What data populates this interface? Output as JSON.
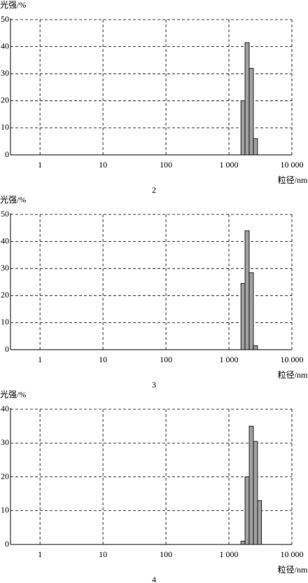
{
  "chart_data": [
    {
      "type": "histogram",
      "ylabel": "光强/%",
      "xlabel": "粒径/nm",
      "caption": "2",
      "log_x": true,
      "grid": true,
      "color": "#a0a0a0",
      "bins": [
        1550,
        1800,
        2100,
        2450,
        2850
      ],
      "values": [
        20,
        41.5,
        32,
        6
      ],
      "xlim": [
        0.34,
        10000
      ],
      "xticks": [
        1,
        10,
        100,
        {
          "value": 1000,
          "label": "1 000"
        },
        {
          "value": 10000,
          "label": "10 000"
        }
      ],
      "ylim": [
        0,
        50
      ],
      "yticks": [
        0,
        10,
        20,
        30,
        40,
        50
      ]
    },
    {
      "type": "histogram",
      "ylabel": "光强/%",
      "xlabel": "粒径/nm",
      "caption": "3",
      "log_x": true,
      "grid": true,
      "color": "#a0a0a0",
      "bins": [
        1550,
        1800,
        2100,
        2450,
        2850
      ],
      "values": [
        24.5,
        44,
        28.5,
        1.5
      ],
      "xlim": [
        0.34,
        10000
      ],
      "xticks": [
        1,
        10,
        100,
        {
          "value": 1000,
          "label": "1 000"
        },
        {
          "value": 10000,
          "label": "10 000"
        }
      ],
      "ylim": [
        0,
        50
      ],
      "yticks": [
        0,
        10,
        20,
        30,
        40,
        50
      ]
    },
    {
      "type": "histogram",
      "ylabel": "光强/%",
      "xlabel": "粒径/nm",
      "caption": "4",
      "log_x": true,
      "grid": true,
      "color": "#a0a0a0",
      "bins": [
        1550,
        1800,
        2100,
        2450,
        2850,
        3300
      ],
      "values": [
        1,
        20,
        35,
        30.5,
        13
      ],
      "xlim": [
        0.34,
        10000
      ],
      "xticks": [
        1,
        10,
        100,
        {
          "value": 1000,
          "label": "1 000"
        },
        {
          "value": 10000,
          "label": "10 000"
        }
      ],
      "ylim": [
        0,
        40
      ],
      "yticks": [
        0,
        10,
        20,
        30,
        40
      ]
    }
  ]
}
